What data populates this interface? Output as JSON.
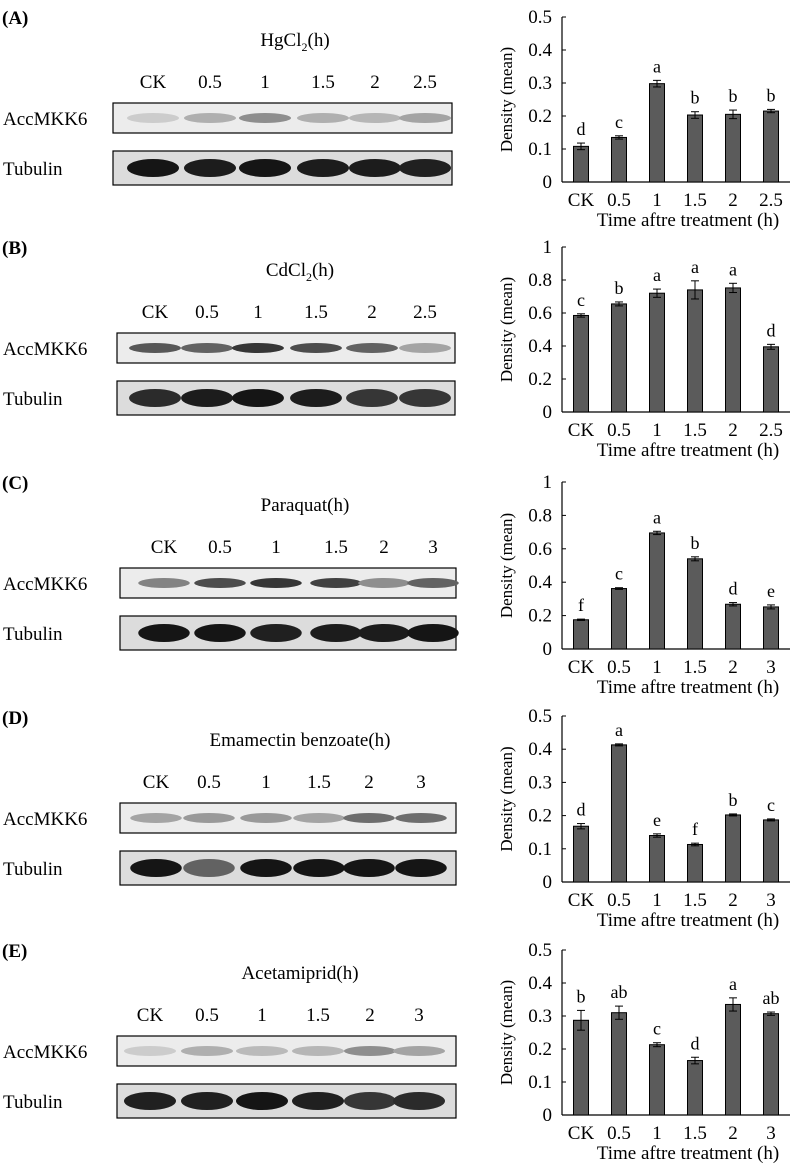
{
  "chart_data": [
    {
      "panel": "(A)",
      "type": "bar",
      "blot_title": "HgCl",
      "blot_title_sub": "2",
      "blot_title_suffix": "(h)",
      "lanes": [
        "CK",
        "0.5",
        "1",
        "1.5",
        "2",
        "2.5"
      ],
      "blot_rows": [
        "AccMKK6",
        "Tubulin"
      ],
      "categories": [
        "CK",
        "0.5",
        "1",
        "1.5",
        "2",
        "2.5"
      ],
      "values": [
        0.108,
        0.135,
        0.298,
        0.203,
        0.205,
        0.215
      ],
      "errors": [
        0.01,
        0.005,
        0.01,
        0.01,
        0.013,
        0.005
      ],
      "significance": [
        "d",
        "c",
        "a",
        "b",
        "b",
        "b"
      ],
      "ylabel": "Density (mean)",
      "xlabel": "Time aftre treatment (h)",
      "ylim": [
        0,
        0.5
      ],
      "yticks": [
        "0",
        "0.1",
        "0.2",
        "0.3",
        "0.4",
        "0.5"
      ],
      "band_intensity": {
        "AccMKK6": [
          0.12,
          0.25,
          0.4,
          0.25,
          0.22,
          0.3
        ],
        "Tubulin": [
          0.95,
          0.92,
          0.95,
          0.92,
          0.92,
          0.9
        ]
      }
    },
    {
      "panel": "(B)",
      "type": "bar",
      "blot_title": "CdCl",
      "blot_title_sub": "2",
      "blot_title_suffix": "(h)",
      "lanes": [
        "CK",
        "0.5",
        "1",
        "1.5",
        "2",
        "2.5"
      ],
      "blot_rows": [
        "AccMKK6",
        "Tubulin"
      ],
      "categories": [
        "CK",
        "0.5",
        "1",
        "1.5",
        "2",
        "2.5"
      ],
      "values": [
        0.585,
        0.655,
        0.72,
        0.74,
        0.752,
        0.395
      ],
      "errors": [
        0.01,
        0.012,
        0.025,
        0.055,
        0.028,
        0.015
      ],
      "significance": [
        "c",
        "b",
        "a",
        "a",
        "a",
        "d"
      ],
      "ylabel": "Density (mean)",
      "xlabel": "Time aftre treatment (h)",
      "ylim": [
        0,
        1
      ],
      "yticks": [
        "0",
        "0.2",
        "0.4",
        "0.6",
        "0.8",
        "1"
      ],
      "band_intensity": {
        "AccMKK6": [
          0.65,
          0.6,
          0.8,
          0.7,
          0.6,
          0.3
        ],
        "Tubulin": [
          0.85,
          0.92,
          0.95,
          0.92,
          0.8,
          0.8
        ]
      }
    },
    {
      "panel": "(C)",
      "type": "bar",
      "blot_title": "Paraquat(h)",
      "blot_title_sub": "",
      "blot_title_suffix": "",
      "lanes": [
        "CK",
        "0.5",
        "1",
        "1.5",
        "2",
        "3"
      ],
      "blot_rows": [
        "AccMKK6",
        "Tubulin"
      ],
      "categories": [
        "CK",
        "0.5",
        "1",
        "1.5",
        "2",
        "3"
      ],
      "values": [
        0.175,
        0.362,
        0.695,
        0.54,
        0.268,
        0.252
      ],
      "errors": [
        0.004,
        0.005,
        0.01,
        0.012,
        0.01,
        0.012
      ],
      "significance": [
        "f",
        "c",
        "a",
        "b",
        "d",
        "e"
      ],
      "ylabel": "Density (mean)",
      "xlabel": "Time aftre treatment (h)",
      "ylim": [
        0,
        1
      ],
      "yticks": [
        "0",
        "0.2",
        "0.4",
        "0.6",
        "0.8",
        "1"
      ],
      "band_intensity": {
        "AccMKK6": [
          0.45,
          0.7,
          0.8,
          0.75,
          0.4,
          0.6
        ],
        "Tubulin": [
          0.95,
          0.95,
          0.9,
          0.92,
          0.92,
          0.95
        ]
      }
    },
    {
      "panel": "(D)",
      "type": "bar",
      "blot_title": "Emamectin benzoate(h)",
      "blot_title_sub": "",
      "blot_title_suffix": "",
      "lanes": [
        "CK",
        "0.5",
        "1",
        "1.5",
        "2",
        "3"
      ],
      "blot_rows": [
        "AccMKK6",
        "Tubulin"
      ],
      "categories": [
        "CK",
        "0.5",
        "1",
        "1.5",
        "2",
        "3"
      ],
      "values": [
        0.168,
        0.413,
        0.14,
        0.113,
        0.202,
        0.187
      ],
      "errors": [
        0.008,
        0.003,
        0.005,
        0.004,
        0.003,
        0.003
      ],
      "significance": [
        "d",
        "a",
        "e",
        "f",
        "b",
        "c"
      ],
      "ylabel": "Density (mean)",
      "xlabel": "Time aftre treatment (h)",
      "ylim": [
        0,
        0.5
      ],
      "yticks": [
        "0",
        "0.1",
        "0.2",
        "0.3",
        "0.4",
        "0.5"
      ],
      "band_intensity": {
        "AccMKK6": [
          0.3,
          0.35,
          0.35,
          0.3,
          0.55,
          0.55
        ],
        "Tubulin": [
          0.95,
          0.6,
          0.95,
          0.95,
          0.95,
          0.95
        ]
      }
    },
    {
      "panel": "(E)",
      "type": "bar",
      "blot_title": "Acetamiprid(h)",
      "blot_title_sub": "",
      "blot_title_suffix": "",
      "lanes": [
        "CK",
        "0.5",
        "1",
        "1.5",
        "2",
        "3"
      ],
      "blot_rows": [
        "AccMKK6",
        "Tubulin"
      ],
      "categories": [
        "CK",
        "0.5",
        "1",
        "1.5",
        "2",
        "3"
      ],
      "values": [
        0.287,
        0.31,
        0.213,
        0.165,
        0.335,
        0.307
      ],
      "errors": [
        0.03,
        0.02,
        0.006,
        0.01,
        0.02,
        0.005
      ],
      "significance": [
        "b",
        "ab",
        "c",
        "d",
        "a",
        "ab"
      ],
      "ylabel": "Density (mean)",
      "xlabel": "Time aftre treatment (h)",
      "ylim": [
        0,
        0.5
      ],
      "yticks": [
        "0",
        "0.1",
        "0.2",
        "0.3",
        "0.4",
        "0.5"
      ],
      "band_intensity": {
        "AccMKK6": [
          0.12,
          0.25,
          0.2,
          0.22,
          0.4,
          0.3
        ],
        "Tubulin": [
          0.9,
          0.9,
          0.95,
          0.9,
          0.8,
          0.85
        ]
      }
    }
  ]
}
